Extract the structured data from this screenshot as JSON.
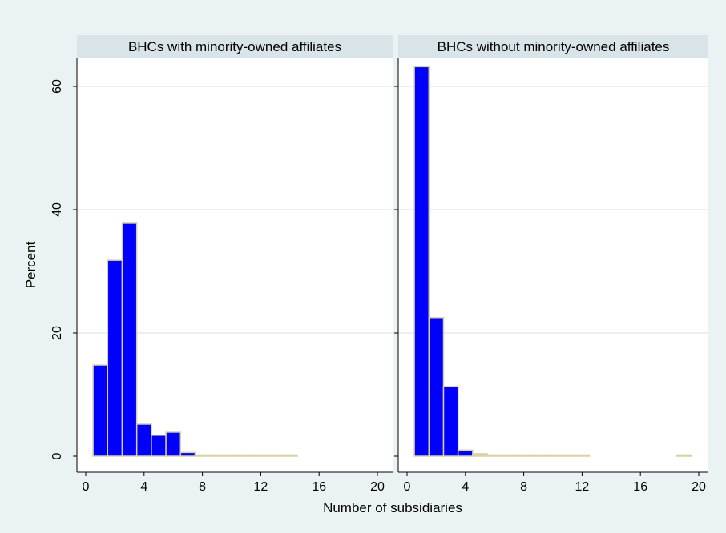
{
  "colors": {
    "figure_background": "#eaf2f3",
    "panel_background": "#ffffff",
    "panel_header": "#d8e4e8",
    "grid": "#e3ecee",
    "bar_fill": "#0000ff",
    "bar_stroke": "#d8d1a6",
    "axis": "#000000"
  },
  "chart_data": {
    "type": "bar",
    "xlabel": "Number of subsidiaries",
    "ylabel": "Percent",
    "xlim": [
      -1,
      21
    ],
    "ylim": [
      0,
      65
    ],
    "xticks": [
      0,
      4,
      8,
      12,
      16,
      20
    ],
    "yticks": [
      0,
      20,
      40,
      60
    ],
    "bin_width": 1,
    "grid": true,
    "panels": [
      {
        "title": "BHCs with minority-owned affiliates",
        "bins": [
          1,
          2,
          3,
          4,
          5,
          6,
          7,
          8,
          9,
          10,
          11,
          12,
          13,
          14
        ],
        "values": [
          14.8,
          31.8,
          37.8,
          5.2,
          3.4,
          3.9,
          0.6,
          0.2,
          0.2,
          0.2,
          0.2,
          0.2,
          0.2,
          0.2
        ]
      },
      {
        "title": "BHCs without minority-owned affiliates",
        "bins": [
          1,
          2,
          3,
          4,
          5,
          6,
          7,
          8,
          9,
          10,
          11,
          12,
          19
        ],
        "values": [
          63.2,
          22.5,
          11.3,
          1.0,
          0.4,
          0.2,
          0.2,
          0.2,
          0.2,
          0.2,
          0.2,
          0.2,
          0.2
        ]
      }
    ]
  }
}
